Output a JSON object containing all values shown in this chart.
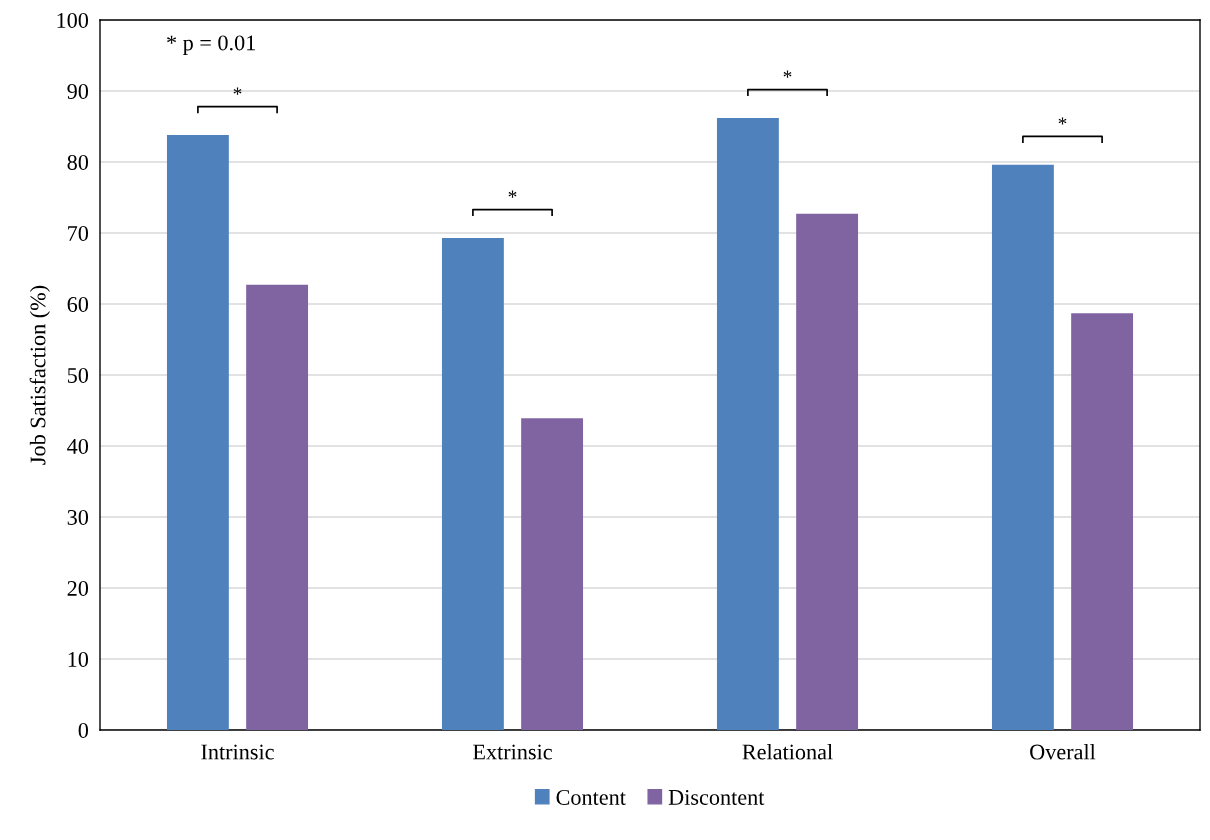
{
  "chart_data": {
    "type": "bar",
    "ylabel": "Job Satisfaction (%)",
    "categories": [
      "Intrinsic",
      "Extrinsic",
      "Relational",
      "Overall"
    ],
    "series": [
      {
        "name": "Content",
        "color": "#4f81bd",
        "values": [
          83.8,
          69.3,
          86.2,
          79.6
        ]
      },
      {
        "name": "Discontent",
        "color": "#8064a2",
        "values": [
          62.7,
          43.9,
          72.7,
          58.7
        ]
      }
    ],
    "ylim": [
      0,
      100
    ],
    "yticks": [
      0,
      10,
      20,
      30,
      40,
      50,
      60,
      70,
      80,
      90,
      100
    ],
    "grid": "y",
    "legend": "bottom",
    "annotations": [
      "* p = 0.01",
      "*",
      "*",
      "*",
      "*"
    ]
  }
}
